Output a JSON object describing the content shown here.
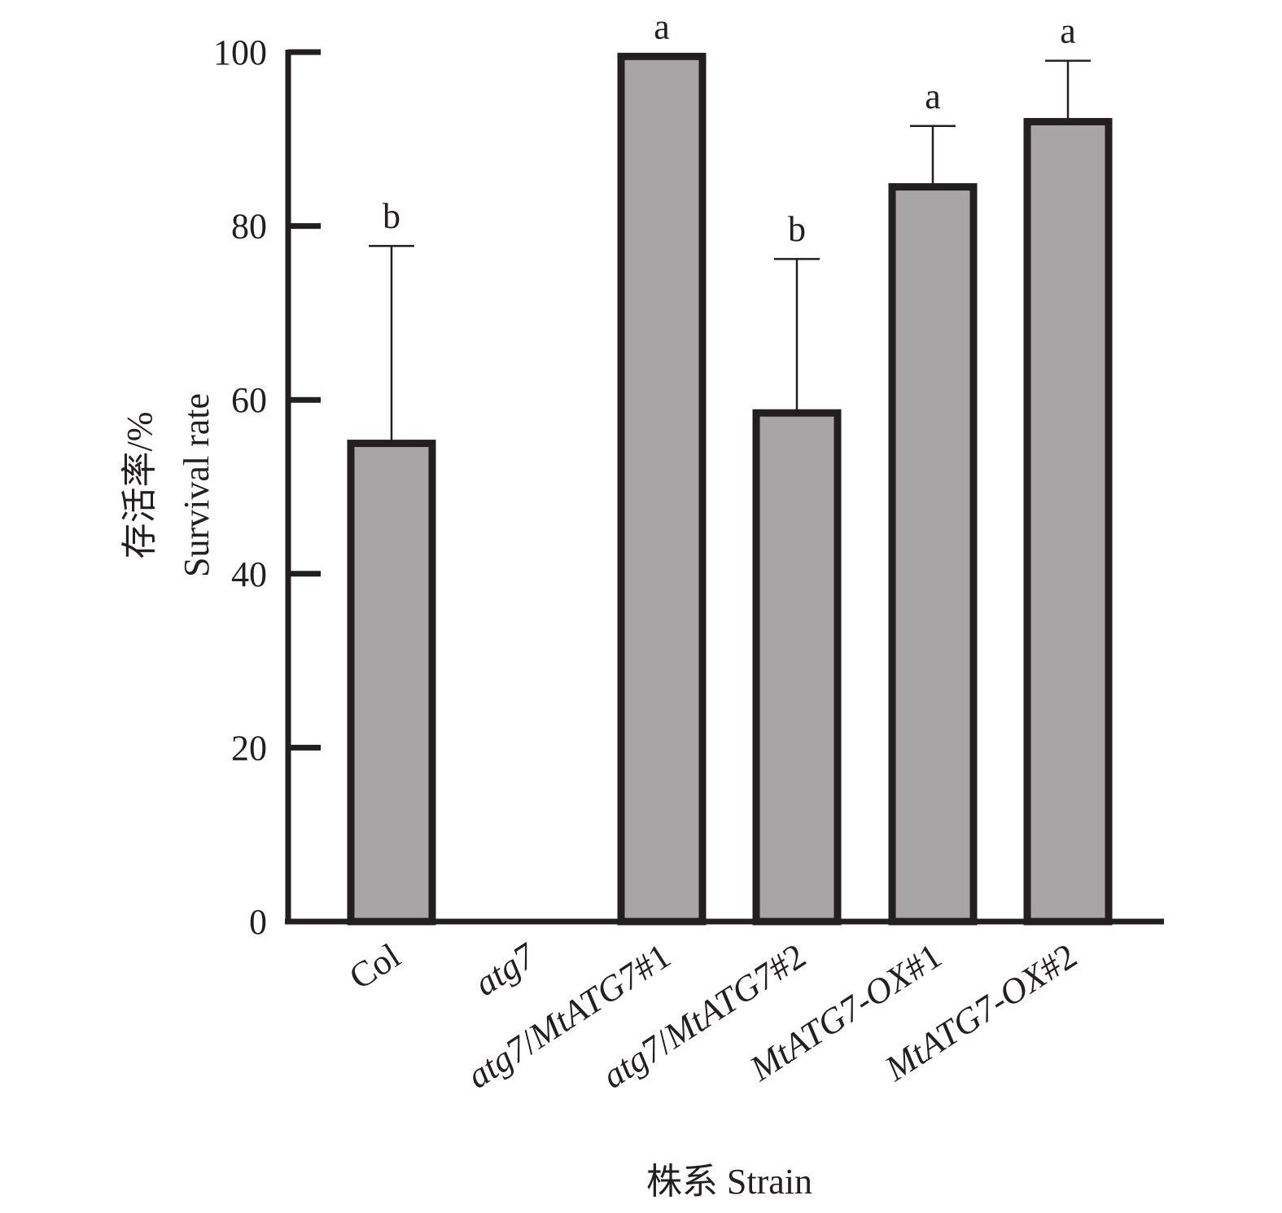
{
  "chart_data": {
    "type": "bar",
    "categories": [
      {
        "label": "Col",
        "italic_part": "",
        "roman_part": "Col"
      },
      {
        "label": "atg7",
        "italic_part": "atg7",
        "roman_part": ""
      },
      {
        "label": "atg7/MtATG7#1",
        "italic_part": "atg7",
        "roman_part": "/",
        "italic_part2": "MtATG7",
        "roman_part2": "#1"
      },
      {
        "label": "atg7/MtATG7#2",
        "italic_part": "atg7",
        "roman_part": "/",
        "italic_part2": "MtATG7",
        "roman_part2": "#2"
      },
      {
        "label": "MtATG7-OX#1",
        "italic_part": "MtATG7-OX",
        "roman_part": "#1"
      },
      {
        "label": "MtATG7-OX#2",
        "italic_part": "MtATG7-OX",
        "roman_part": "#2"
      }
    ],
    "values": [
      55,
      0,
      99.5,
      58.5,
      84.5,
      92
    ],
    "error_upper": [
      77.7,
      null,
      null,
      76.2,
      91.5,
      99
    ],
    "significance": [
      "b",
      "",
      "a",
      "b",
      "a",
      "a"
    ],
    "ylim": [
      0,
      100
    ],
    "yticks": [
      "0",
      "20",
      "40",
      "60",
      "80",
      "100"
    ],
    "ylabel_cn": "存活率/%",
    "ylabel_en": "Survival rate",
    "xlabel": "株系 Strain",
    "bar_color": "#a7a5a6",
    "edge_color": "#231f20"
  }
}
